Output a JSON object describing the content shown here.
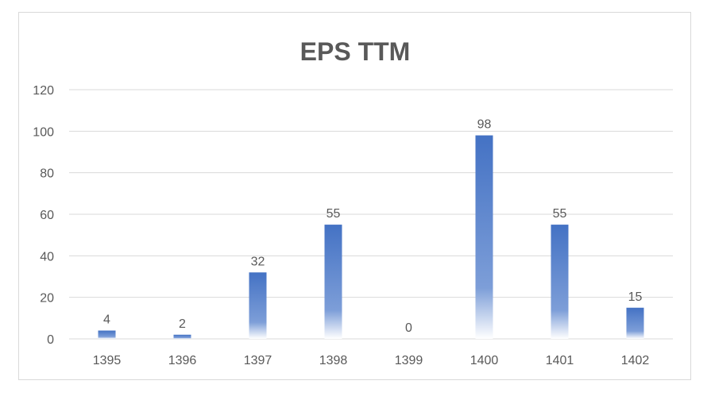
{
  "chart_data": {
    "type": "bar",
    "title": "EPS TTM",
    "categories": [
      "1395",
      "1396",
      "1397",
      "1398",
      "1399",
      "1400",
      "1401",
      "1402"
    ],
    "values": [
      4,
      2,
      32,
      55,
      0,
      98,
      55,
      15
    ],
    "ylim": [
      0,
      120
    ],
    "yticks": [
      0,
      20,
      40,
      60,
      80,
      100,
      120
    ],
    "grid": true,
    "data_labels": true,
    "bar_color": "#4472C4",
    "xlabel": "",
    "ylabel": ""
  }
}
